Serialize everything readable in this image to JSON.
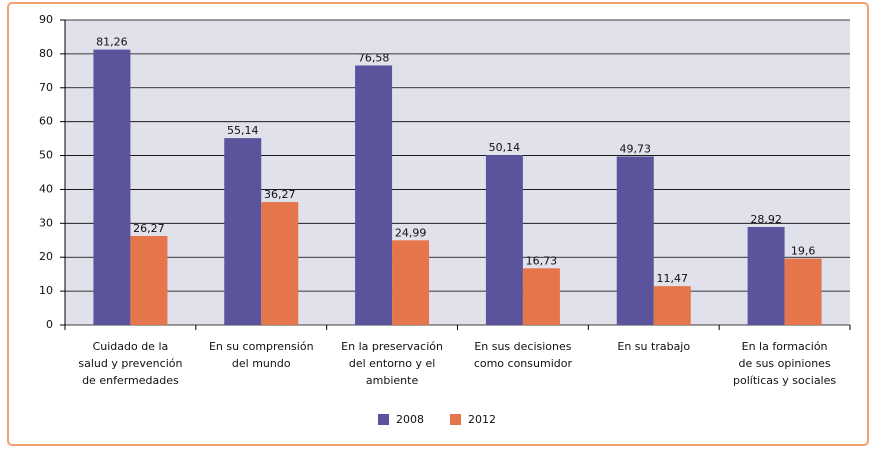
{
  "chart_data": {
    "type": "bar",
    "categories": [
      [
        "Cuidado de la",
        "salud y prevención",
        "de enfermedades"
      ],
      [
        "En su comprensión",
        "del mundo"
      ],
      [
        "En la preservación",
        "del entorno y el",
        "ambiente"
      ],
      [
        "En sus decisiones",
        "como consumidor"
      ],
      [
        "En su trabajo"
      ],
      [
        "En la formación",
        "de sus opiniones",
        "políticas y sociales"
      ]
    ],
    "series": [
      {
        "name": "2008",
        "color": "#5b549c",
        "values": [
          81.26,
          55.14,
          76.58,
          50.14,
          49.73,
          28.92
        ],
        "value_labels": [
          "81,26",
          "55,14",
          "76,58",
          "50,14",
          "49,73",
          "28,92"
        ]
      },
      {
        "name": "2012",
        "color": "#e5754a",
        "values": [
          26.27,
          36.27,
          24.99,
          16.73,
          11.47,
          19.6
        ],
        "value_labels": [
          "26,27",
          "36,27",
          "24,99",
          "16,73",
          "11,47",
          "19,6"
        ]
      }
    ],
    "ylim": [
      0,
      90
    ],
    "yticks": [
      0,
      10,
      20,
      30,
      40,
      50,
      60,
      70,
      80,
      90
    ],
    "grid": true,
    "legend": "bottom"
  }
}
